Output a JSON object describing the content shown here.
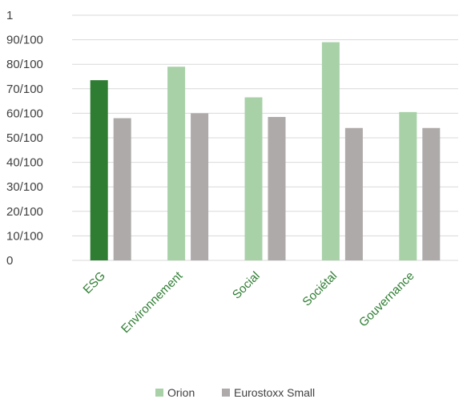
{
  "chart_data": {
    "type": "bar",
    "categories": [
      "ESG",
      "Environnement",
      "Social",
      "Sociétal",
      "Gouvernance"
    ],
    "series": [
      {
        "name": "Orion",
        "values": [
          73.5,
          79,
          66.5,
          89,
          60.5
        ]
      },
      {
        "name": "Eurostoxx Small",
        "values": [
          58,
          60,
          58.5,
          54,
          54
        ]
      }
    ],
    "ytick_labels": [
      "0",
      "10/100",
      "20/100",
      "30/100",
      "40/100",
      "50/100",
      "60/100",
      "70/100",
      "80/100",
      "90/100",
      "1"
    ],
    "ylim": [
      0,
      100
    ],
    "grid": true,
    "legend": "bottom-center",
    "colors": {
      "orion": "#a8d1a8",
      "orion_highlight": "#2e7d32",
      "eurostoxx": "#aeaaaa",
      "category_label": "#2e7d32",
      "gridline": "#d9d9d9",
      "axis_text": "#404040"
    }
  }
}
